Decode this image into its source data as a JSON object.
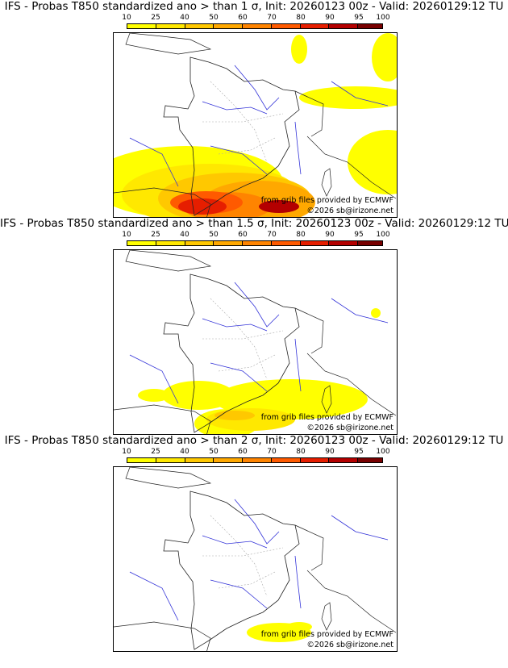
{
  "panels": [
    {
      "title": "IFS - Probas T850  standardized ano > than 1 σ, Init: 20260123 00z - Valid: 20260129:12 TU",
      "max_probability_percent": 80
    },
    {
      "title": "IFS - Probas T850  standardized ano > than 1.5 σ, Init: 20260123 00z - Valid: 20260129:12 TU",
      "max_probability_percent": 40
    },
    {
      "title": "IFS - Probas T850  standardized ano > than 2 σ, Init: 20260123 00z - Valid: 20260129:12 TU",
      "max_probability_percent": 25
    }
  ],
  "colorbar": {
    "ticks": [
      "10",
      "25",
      "40",
      "50",
      "60",
      "70",
      "80",
      "90",
      "95",
      "100"
    ],
    "colors": [
      "#ffff00",
      "#ffe800",
      "#ffc800",
      "#ffa800",
      "#ff8400",
      "#ff5a00",
      "#e61e00",
      "#b40000",
      "#780000"
    ]
  },
  "credits": {
    "line1": "from grib files provided by ECMWF",
    "line2": "©2026 sb@irizone.net"
  },
  "map_colors": {
    "rivers": "#3232d8",
    "borders": "#222222",
    "departments": "#a9a9a9"
  }
}
